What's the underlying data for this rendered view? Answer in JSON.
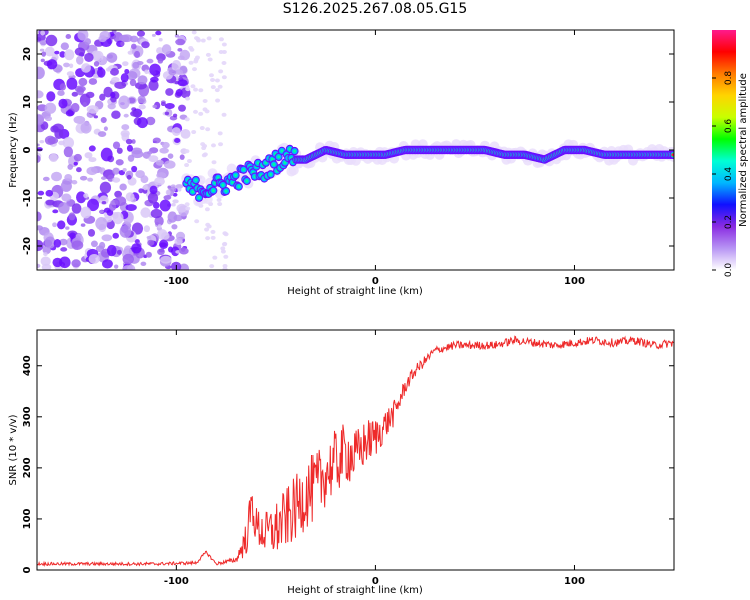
{
  "title": "S126.2025.267.08.05.G15",
  "colors": {
    "snr_line": "#ee2a2a",
    "axis": "#000000",
    "grid": "#000000"
  },
  "colorbar": {
    "label": "Normalized spectral amplitude",
    "ticks": [
      "0.0",
      "0.2",
      "0.4",
      "0.6",
      "0.8"
    ],
    "tick_values": [
      0.0,
      0.2,
      0.4,
      0.6,
      0.8
    ],
    "range": [
      0,
      1
    ],
    "stops": [
      "#ffffff",
      "#b794f4",
      "#8a2be2",
      "#1010ff",
      "#00b7ff",
      "#00ffd5",
      "#00ff00",
      "#c8ff00",
      "#ffd400",
      "#ff7a00",
      "#ff0000",
      "#ff1a8c"
    ]
  },
  "chart_data": [
    {
      "type": "heatmap",
      "title": "S126.2025.267.08.05.G15",
      "xlabel": "Height of straight line (km)",
      "ylabel": "Frequency (Hz)",
      "xlim": [
        -170,
        150
      ],
      "ylim": [
        -25,
        25
      ],
      "x_ticks": [
        -100,
        0,
        100
      ],
      "x_tick_labels": [
        "-100",
        "0",
        "100"
      ],
      "y_ticks": [
        -20,
        -10,
        0,
        10,
        20
      ],
      "y_tick_labels": [
        "-20",
        "-10",
        "0",
        "10",
        "20"
      ],
      "ridge": {
        "x": [
          -95,
          -85,
          -75,
          -65,
          -55,
          -45,
          -40,
          -35,
          -25,
          -15,
          -5,
          5,
          15,
          25,
          35,
          45,
          55,
          65,
          75,
          85,
          95,
          105,
          115,
          125,
          135,
          150
        ],
        "frequency": [
          -8,
          -8,
          -7,
          -5,
          -4,
          -1,
          -2,
          -2,
          0,
          -1,
          -1,
          -1,
          0,
          0,
          0,
          0,
          0,
          -1,
          -1,
          -2,
          0,
          0,
          -1,
          -1,
          -1,
          -1
        ]
      },
      "noise_region": [
        -170,
        -95
      ]
    },
    {
      "type": "line",
      "xlabel": "Height of straight line (km)",
      "ylabel": "SNR (10 * v/v)",
      "xlim": [
        -170,
        150
      ],
      "ylim": [
        0,
        470
      ],
      "x_ticks": [
        -100,
        0,
        100
      ],
      "x_tick_labels": [
        "-100",
        "0",
        "100"
      ],
      "y_ticks": [
        0,
        100,
        200,
        300,
        400
      ],
      "y_tick_labels": [
        "0",
        "100",
        "200",
        "300",
        "400"
      ],
      "series": [
        {
          "name": "SNR",
          "x": [
            -170,
            -140,
            -110,
            -90,
            -85,
            -80,
            -70,
            -65,
            -62,
            -60,
            -55,
            -50,
            -45,
            -40,
            -35,
            -30,
            -25,
            -20,
            -15,
            -10,
            -5,
            0,
            5,
            10,
            15,
            20,
            25,
            30,
            40,
            50,
            60,
            70,
            80,
            90,
            100,
            110,
            120,
            130,
            140,
            150
          ],
          "y": [
            12,
            12,
            12,
            14,
            35,
            12,
            20,
            60,
            130,
            85,
            70,
            80,
            100,
            120,
            150,
            160,
            190,
            210,
            230,
            220,
            250,
            260,
            285,
            310,
            360,
            390,
            410,
            430,
            440,
            440,
            440,
            450,
            445,
            440,
            445,
            450,
            445,
            450,
            440,
            445
          ],
          "noise_amplitude": [
            3,
            3,
            3,
            3,
            3,
            3,
            5,
            35,
            40,
            40,
            45,
            55,
            60,
            65,
            70,
            70,
            65,
            65,
            60,
            55,
            45,
            40,
            30,
            25,
            15,
            12,
            10,
            8,
            8,
            8,
            8,
            8,
            8,
            8,
            8,
            8,
            8,
            8,
            8,
            8
          ]
        }
      ]
    }
  ]
}
